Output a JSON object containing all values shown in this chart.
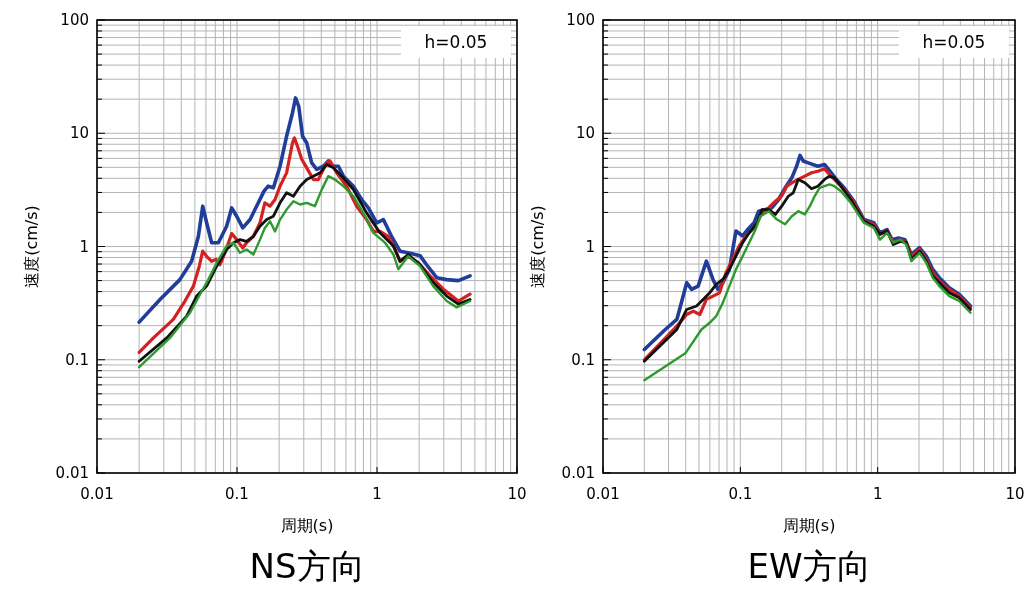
{
  "chart_data": [
    {
      "type": "line",
      "title": "NS方向",
      "xlabel": "周期(s)",
      "ylabel": "速度(cm/s)",
      "annotations": [
        "h=0.05"
      ],
      "log": "xy",
      "grid": true,
      "xlim": [
        0.01,
        10
      ],
      "ylim": [
        0.01,
        100
      ],
      "xticks": [
        0.01,
        0.1,
        1,
        10
      ],
      "yticks": [
        0.01,
        0.1,
        1,
        10,
        100
      ],
      "series": [
        {
          "color": "#1f3d99",
          "x": [
            0.02,
            0.0282,
            0.0391,
            0.0474,
            0.053,
            0.0569,
            0.0607,
            0.0659,
            0.0736,
            0.0843,
            0.0916,
            0.0995,
            0.11,
            0.124,
            0.138,
            0.156,
            0.167,
            0.182,
            0.203,
            0.226,
            0.249,
            0.262,
            0.276,
            0.294,
            0.315,
            0.341,
            0.371,
            0.414,
            0.449,
            0.488,
            0.53,
            0.575,
            0.678,
            0.777,
            0.867,
            0.995,
            1.11,
            1.27,
            1.46,
            1.67,
            2.03,
            2.26,
            2.67,
            3.15,
            3.81,
            4.62
          ],
          "values": [
            0.215,
            0.34,
            0.51,
            0.74,
            1.23,
            2.27,
            1.62,
            1.08,
            1.08,
            1.51,
            2.19,
            1.85,
            1.46,
            1.73,
            2.27,
            3.08,
            3.41,
            3.3,
            5.12,
            9.4,
            15.1,
            20.5,
            17.3,
            9.4,
            8.2,
            5.5,
            4.8,
            5.12,
            5.7,
            5.12,
            5.12,
            4.18,
            3.41,
            2.6,
            2.19,
            1.62,
            1.73,
            1.23,
            0.91,
            0.88,
            0.83,
            0.69,
            0.53,
            0.51,
            0.5,
            0.55
          ]
        },
        {
          "color": "#d42020",
          "x": [
            0.02,
            0.0253,
            0.0351,
            0.0425,
            0.0488,
            0.0538,
            0.0569,
            0.0607,
            0.0659,
            0.0708,
            0.0756,
            0.0821,
            0.0916,
            0.0995,
            0.11,
            0.117,
            0.131,
            0.146,
            0.158,
            0.172,
            0.187,
            0.203,
            0.226,
            0.249,
            0.257,
            0.27,
            0.29,
            0.315,
            0.351,
            0.381,
            0.437,
            0.462,
            0.515,
            0.607,
            0.716,
            0.843,
            0.942,
            1.05,
            1.2,
            1.35,
            1.46,
            1.67,
            1.97,
            2.39,
            2.98,
            3.81,
            4.62
          ],
          "values": [
            0.116,
            0.156,
            0.227,
            0.33,
            0.447,
            0.67,
            0.91,
            0.82,
            0.74,
            0.77,
            0.69,
            0.88,
            1.3,
            1.15,
            0.97,
            1.08,
            1.23,
            1.62,
            2.43,
            2.27,
            2.6,
            3.41,
            4.47,
            8.2,
            9.1,
            7.7,
            5.9,
            4.95,
            3.9,
            3.9,
            5.5,
            5.7,
            4.47,
            3.41,
            2.27,
            1.73,
            1.36,
            1.36,
            1.23,
            0.94,
            0.74,
            0.82,
            0.72,
            0.55,
            0.42,
            0.33,
            0.38
          ]
        },
        {
          "color": "#111111",
          "x": [
            0.02,
            0.0315,
            0.0437,
            0.0515,
            0.0607,
            0.0716,
            0.0843,
            0.0942,
            0.105,
            0.117,
            0.131,
            0.146,
            0.163,
            0.182,
            0.203,
            0.226,
            0.253,
            0.282,
            0.315,
            0.351,
            0.392,
            0.437,
            0.488,
            0.575,
            0.678,
            0.843,
            1.05,
            1.31,
            1.46,
            1.67,
            2.03,
            2.52,
            3.15,
            3.81,
            4.62
          ],
          "values": [
            0.097,
            0.156,
            0.243,
            0.365,
            0.447,
            0.67,
            0.94,
            1.08,
            1.15,
            1.11,
            1.23,
            1.51,
            1.73,
            1.85,
            2.43,
            2.98,
            2.78,
            3.41,
            3.9,
            4.18,
            4.47,
            5.3,
            4.95,
            4.04,
            3.18,
            1.98,
            1.32,
            1.01,
            0.74,
            0.85,
            0.69,
            0.48,
            0.365,
            0.31,
            0.34
          ]
        },
        {
          "color": "#2e9a2e",
          "x": [
            0.02,
            0.0332,
            0.0462,
            0.0544,
            0.0624,
            0.0716,
            0.0843,
            0.0942,
            0.105,
            0.117,
            0.131,
            0.146,
            0.158,
            0.172,
            0.187,
            0.203,
            0.226,
            0.253,
            0.282,
            0.315,
            0.36,
            0.403,
            0.449,
            0.501,
            0.575,
            0.678,
            0.798,
            0.942,
            1.14,
            1.31,
            1.42,
            1.67,
            2.03,
            2.52,
            3.15,
            3.71,
            4.62
          ],
          "values": [
            0.086,
            0.156,
            0.26,
            0.377,
            0.51,
            0.72,
            1.01,
            1.08,
            0.88,
            0.94,
            0.85,
            1.15,
            1.46,
            1.67,
            1.36,
            1.73,
            2.12,
            2.51,
            2.35,
            2.43,
            2.27,
            3.18,
            4.18,
            3.9,
            3.41,
            2.78,
            1.98,
            1.32,
            1.08,
            0.85,
            0.63,
            0.82,
            0.67,
            0.447,
            0.33,
            0.29,
            0.33
          ]
        }
      ]
    },
    {
      "type": "line",
      "title": "EW方向",
      "xlabel": "周期(s)",
      "ylabel": "速度(cm/s)",
      "annotations": [
        "h=0.05"
      ],
      "log": "xy",
      "grid": true,
      "xlim": [
        0.01,
        10
      ],
      "ylim": [
        0.01,
        100
      ],
      "xticks": [
        0.01,
        0.1,
        1,
        10
      ],
      "yticks": [
        0.01,
        0.1,
        1,
        10,
        100
      ],
      "series": [
        {
          "color": "#1f3d99",
          "x": [
            0.02,
            0.0284,
            0.0345,
            0.0407,
            0.0442,
            0.0493,
            0.0566,
            0.0632,
            0.0687,
            0.0745,
            0.0832,
            0.0929,
            0.104,
            0.113,
            0.126,
            0.136,
            0.152,
            0.17,
            0.19,
            0.212,
            0.237,
            0.257,
            0.272,
            0.287,
            0.312,
            0.367,
            0.41,
            0.458,
            0.512,
            0.57,
            0.673,
            0.794,
            0.938,
            1.04,
            1.17,
            1.27,
            1.42,
            1.58,
            1.76,
            2.02,
            2.26,
            2.52,
            2.81,
            3.32,
            3.92,
            4.74
          ],
          "values": [
            0.123,
            0.185,
            0.227,
            0.479,
            0.418,
            0.447,
            0.743,
            0.512,
            0.418,
            0.479,
            0.627,
            1.37,
            1.24,
            1.41,
            1.62,
            2.05,
            2.12,
            2.2,
            2.6,
            3.3,
            4.04,
            5.12,
            6.37,
            5.68,
            5.48,
            5.12,
            5.3,
            4.48,
            3.78,
            3.3,
            2.51,
            1.73,
            1.62,
            1.32,
            1.41,
            1.15,
            1.19,
            1.15,
            0.851,
            0.975,
            0.822,
            0.627,
            0.53,
            0.432,
            0.378,
            0.298
          ]
        },
        {
          "color": "#d42020",
          "x": [
            0.02,
            0.0345,
            0.0407,
            0.0454,
            0.0507,
            0.0566,
            0.0632,
            0.0705,
            0.0787,
            0.0879,
            0.0982,
            0.11,
            0.129,
            0.144,
            0.161,
            0.18,
            0.2,
            0.218,
            0.237,
            0.264,
            0.295,
            0.33,
            0.367,
            0.41,
            0.458,
            0.512,
            0.57,
            0.673,
            0.794,
            0.938,
            1.04,
            1.17,
            1.3,
            1.46,
            1.62,
            1.76,
            2.02,
            2.26,
            2.52,
            2.81,
            3.32,
            3.92,
            4.74
          ],
          "values": [
            0.1,
            0.198,
            0.251,
            0.269,
            0.251,
            0.341,
            0.365,
            0.39,
            0.586,
            0.769,
            1.01,
            1.24,
            1.51,
            1.98,
            2.2,
            2.51,
            2.79,
            3.41,
            3.65,
            3.91,
            4.18,
            4.48,
            4.62,
            4.85,
            4.18,
            3.65,
            3.18,
            2.43,
            1.67,
            1.57,
            1.28,
            1.37,
            1.08,
            1.15,
            1.08,
            0.822,
            0.942,
            0.769,
            0.586,
            0.494,
            0.418,
            0.365,
            0.288
          ]
        },
        {
          "color": "#111111",
          "x": [
            0.02,
            0.0345,
            0.0407,
            0.048,
            0.0536,
            0.0598,
            0.0668,
            0.0745,
            0.0832,
            0.0929,
            0.104,
            0.116,
            0.133,
            0.144,
            0.161,
            0.18,
            0.2,
            0.224,
            0.243,
            0.264,
            0.295,
            0.33,
            0.367,
            0.41,
            0.446,
            0.484,
            0.541,
            0.637,
            0.794,
            0.938,
            1.04,
            1.17,
            1.3,
            1.46,
            1.62,
            1.76,
            2.02,
            2.26,
            2.52,
            2.81,
            3.32,
            3.92,
            4.74
          ],
          "values": [
            0.097,
            0.185,
            0.278,
            0.298,
            0.341,
            0.39,
            0.462,
            0.512,
            0.627,
            0.822,
            1.08,
            1.32,
            1.62,
            2.12,
            2.12,
            1.92,
            2.27,
            2.79,
            2.98,
            3.91,
            3.65,
            3.23,
            3.41,
            3.91,
            4.18,
            4.04,
            3.41,
            2.6,
            1.67,
            1.51,
            1.28,
            1.37,
            1.04,
            1.11,
            1.08,
            0.769,
            0.91,
            0.743,
            0.548,
            0.479,
            0.39,
            0.352,
            0.278
          ]
        },
        {
          "color": "#2e9a2e",
          "x": [
            0.02,
            0.04,
            0.0521,
            0.0598,
            0.0668,
            0.0745,
            0.0832,
            0.0929,
            0.104,
            0.116,
            0.129,
            0.14,
            0.161,
            0.185,
            0.212,
            0.237,
            0.264,
            0.295,
            0.321,
            0.348,
            0.378,
            0.41,
            0.446,
            0.484,
            0.541,
            0.637,
            0.794,
            0.938,
            1.04,
            1.17,
            1.3,
            1.46,
            1.62,
            1.76,
            2.02,
            2.26,
            2.52,
            2.81,
            3.32,
            3.92,
            4.74
          ],
          "values": [
            0.066,
            0.115,
            0.185,
            0.212,
            0.243,
            0.318,
            0.447,
            0.627,
            0.822,
            1.08,
            1.41,
            1.85,
            2.05,
            1.73,
            1.57,
            1.85,
            2.05,
            1.92,
            2.27,
            2.79,
            3.3,
            3.41,
            3.53,
            3.41,
            3.08,
            2.43,
            1.62,
            1.46,
            1.15,
            1.32,
            1.08,
            1.15,
            1.04,
            0.743,
            0.879,
            0.718,
            0.53,
            0.447,
            0.365,
            0.33,
            0.26
          ]
        }
      ]
    }
  ]
}
